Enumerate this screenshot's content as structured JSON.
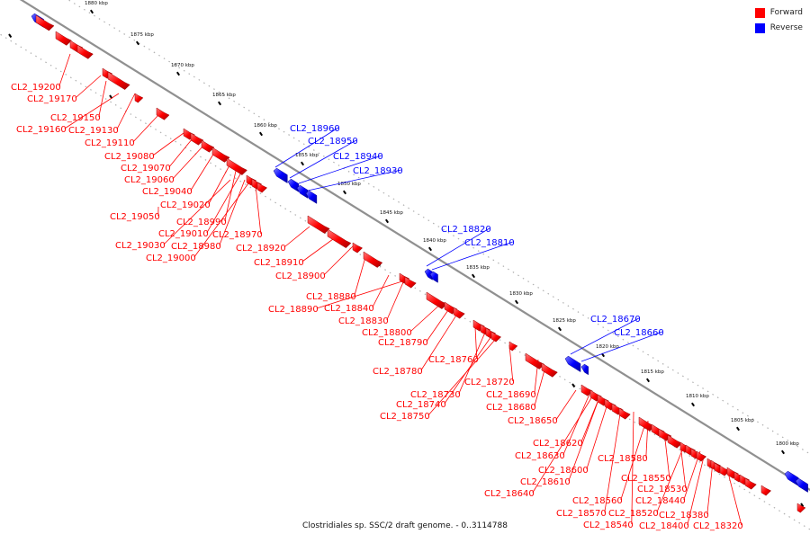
{
  "caption": "Clostridiales sp. SSC/2 draft genome. - 0..3114788",
  "legend": {
    "forward": {
      "label": "Forward",
      "color": "#ff0000"
    },
    "reverse": {
      "label": "Reverse",
      "color": "#0000ff"
    }
  },
  "axis": {
    "unit": "kbp",
    "ticks": [
      1880,
      1875,
      1870,
      1865,
      1860,
      1855,
      1850,
      1845,
      1840,
      1835,
      1830,
      1825,
      1820,
      1815,
      1810,
      1805,
      1800
    ]
  },
  "genes": [
    {
      "label": "CL2_19200",
      "strand": "forward"
    },
    {
      "label": "CL2_19170",
      "strand": "forward"
    },
    {
      "label": "CL2_19150",
      "strand": "forward"
    },
    {
      "label": "CL2_19160",
      "strand": "forward"
    },
    {
      "label": "CL2_19130",
      "strand": "forward"
    },
    {
      "label": "CL2_19110",
      "strand": "forward"
    },
    {
      "label": "CL2_19080",
      "strand": "forward"
    },
    {
      "label": "CL2_19070",
      "strand": "forward"
    },
    {
      "label": "CL2_19060",
      "strand": "forward"
    },
    {
      "label": "CL2_19040",
      "strand": "forward"
    },
    {
      "label": "CL2_19020",
      "strand": "forward"
    },
    {
      "label": "CL2_19050",
      "strand": "forward"
    },
    {
      "label": "CL2_18990",
      "strand": "forward"
    },
    {
      "label": "CL2_19010",
      "strand": "forward"
    },
    {
      "label": "CL2_18970",
      "strand": "forward"
    },
    {
      "label": "CL2_19030",
      "strand": "forward"
    },
    {
      "label": "CL2_18980",
      "strand": "forward"
    },
    {
      "label": "CL2_18920",
      "strand": "forward"
    },
    {
      "label": "CL2_19000",
      "strand": "forward"
    },
    {
      "label": "CL2_18960",
      "strand": "reverse"
    },
    {
      "label": "CL2_18950",
      "strand": "reverse"
    },
    {
      "label": "CL2_18940",
      "strand": "reverse"
    },
    {
      "label": "CL2_18930",
      "strand": "reverse"
    },
    {
      "label": "CL2_18910",
      "strand": "forward"
    },
    {
      "label": "CL2_18900",
      "strand": "forward"
    },
    {
      "label": "CL2_18880",
      "strand": "forward"
    },
    {
      "label": "CL2_18890",
      "strand": "forward"
    },
    {
      "label": "CL2_18840",
      "strand": "forward"
    },
    {
      "label": "CL2_18830",
      "strand": "forward"
    },
    {
      "label": "CL2_18820",
      "strand": "reverse"
    },
    {
      "label": "CL2_18810",
      "strand": "reverse"
    },
    {
      "label": "CL2_18800",
      "strand": "forward"
    },
    {
      "label": "CL2_18790",
      "strand": "forward"
    },
    {
      "label": "CL2_18760",
      "strand": "forward"
    },
    {
      "label": "CL2_18780",
      "strand": "forward"
    },
    {
      "label": "CL2_18720",
      "strand": "forward"
    },
    {
      "label": "CL2_18730",
      "strand": "forward"
    },
    {
      "label": "CL2_18690",
      "strand": "forward"
    },
    {
      "label": "CL2_18740",
      "strand": "forward"
    },
    {
      "label": "CL2_18680",
      "strand": "forward"
    },
    {
      "label": "CL2_18750",
      "strand": "forward"
    },
    {
      "label": "CL2_18650",
      "strand": "forward"
    },
    {
      "label": "CL2_18670",
      "strand": "reverse"
    },
    {
      "label": "CL2_18660",
      "strand": "reverse"
    },
    {
      "label": "CL2_18620",
      "strand": "forward"
    },
    {
      "label": "CL2_18630",
      "strand": "forward"
    },
    {
      "label": "CL2_18580",
      "strand": "forward"
    },
    {
      "label": "CL2_18600",
      "strand": "forward"
    },
    {
      "label": "CL2_18550",
      "strand": "forward"
    },
    {
      "label": "CL2_18610",
      "strand": "forward"
    },
    {
      "label": "CL2_18530",
      "strand": "forward"
    },
    {
      "label": "CL2_18640",
      "strand": "forward"
    },
    {
      "label": "CL2_18560",
      "strand": "forward"
    },
    {
      "label": "CL2_18440",
      "strand": "forward"
    },
    {
      "label": "CL2_18570",
      "strand": "forward"
    },
    {
      "label": "CL2_18520",
      "strand": "forward"
    },
    {
      "label": "CL2_18380",
      "strand": "forward"
    },
    {
      "label": "CL2_18540",
      "strand": "forward"
    },
    {
      "label": "CL2_18400",
      "strand": "forward"
    },
    {
      "label": "CL2_18320",
      "strand": "forward"
    }
  ]
}
